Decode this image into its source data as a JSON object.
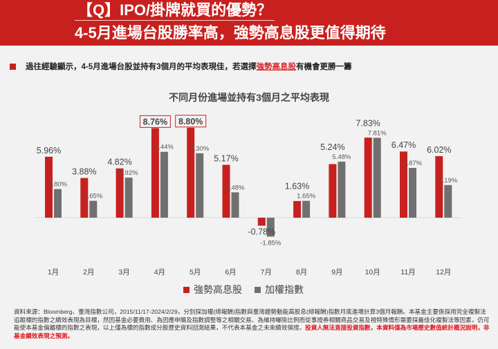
{
  "header": {
    "title_line1": "【Q】IPO/掛牌就買的優勢？",
    "title_line2": "4-5月進場台股勝率高，強勢高息股更值得期待"
  },
  "bullet": {
    "text_before": "過往經驗顯示，4-5月進場台股並持有3個月的平均表現佳，若選擇",
    "highlight": "強勢高息股",
    "text_after": "有機會更勝一籌"
  },
  "chart_data": {
    "type": "bar",
    "title": "不同月份進場並持有3個月之平均表現",
    "categories": [
      "1月",
      "2月",
      "3月",
      "4月",
      "5月",
      "6月",
      "7月",
      "8月",
      "9月",
      "10月",
      "11月",
      "12月"
    ],
    "series": [
      {
        "name": "強勢高息股",
        "color": "#c8201e",
        "values": [
          5.96,
          3.88,
          4.82,
          8.76,
          8.8,
          5.17,
          -0.78,
          1.63,
          5.24,
          7.83,
          6.47,
          6.02
        ],
        "labels": [
          "5.96%",
          "3.88%",
          "4.82%",
          "8.76%",
          "8.80%",
          "5.17%",
          "-0.78%",
          "1.63%",
          "5.24%",
          "7.83%",
          "6.47%",
          "6.02%"
        ]
      },
      {
        "name": "加權指數",
        "color": "#707070",
        "values": [
          2.8,
          1.65,
          3.92,
          6.44,
          6.3,
          2.48,
          -1.85,
          1.65,
          5.48,
          7.81,
          4.87,
          3.19
        ],
        "labels": [
          "2.80%",
          "1.65%",
          "3.92%",
          "6.44%",
          "6.30%",
          "2.48%",
          "-1.85%",
          "1.65%",
          "5.48%",
          "7.81%",
          "4.87%",
          "3.19%"
        ]
      }
    ],
    "highlighted_labels": [
      "4月",
      "5月"
    ],
    "legend_position": "bottom",
    "grid": false
  },
  "footer": {
    "source": "資料來源：Bloomberg、臺灣指數公司，2015/11/17-2024/2/29，分別採加權(總報酬)指數與臺灣趨勢動能高股息(總報酬)指數月底進場計算3個月報酬。本基金主要係採用完全複製法追蹤標的指數之績效表現為目標，然因基金必要費用、為因應申贖及指數調整等之相關交易、為維持曝險比例而從事證券相關商品交易及視特殊情形需要採最佳化複製法等因素，仍可能使本基金偏離標的指數之表現，以上僅為標的指數成分股歷史資料回測結果，不代表本基金之未來績效保證。",
    "warning": "投資人無法直接投資指數，本資料僅為市場歷史數值統計概況說明，非基金績效表現之預測。"
  }
}
